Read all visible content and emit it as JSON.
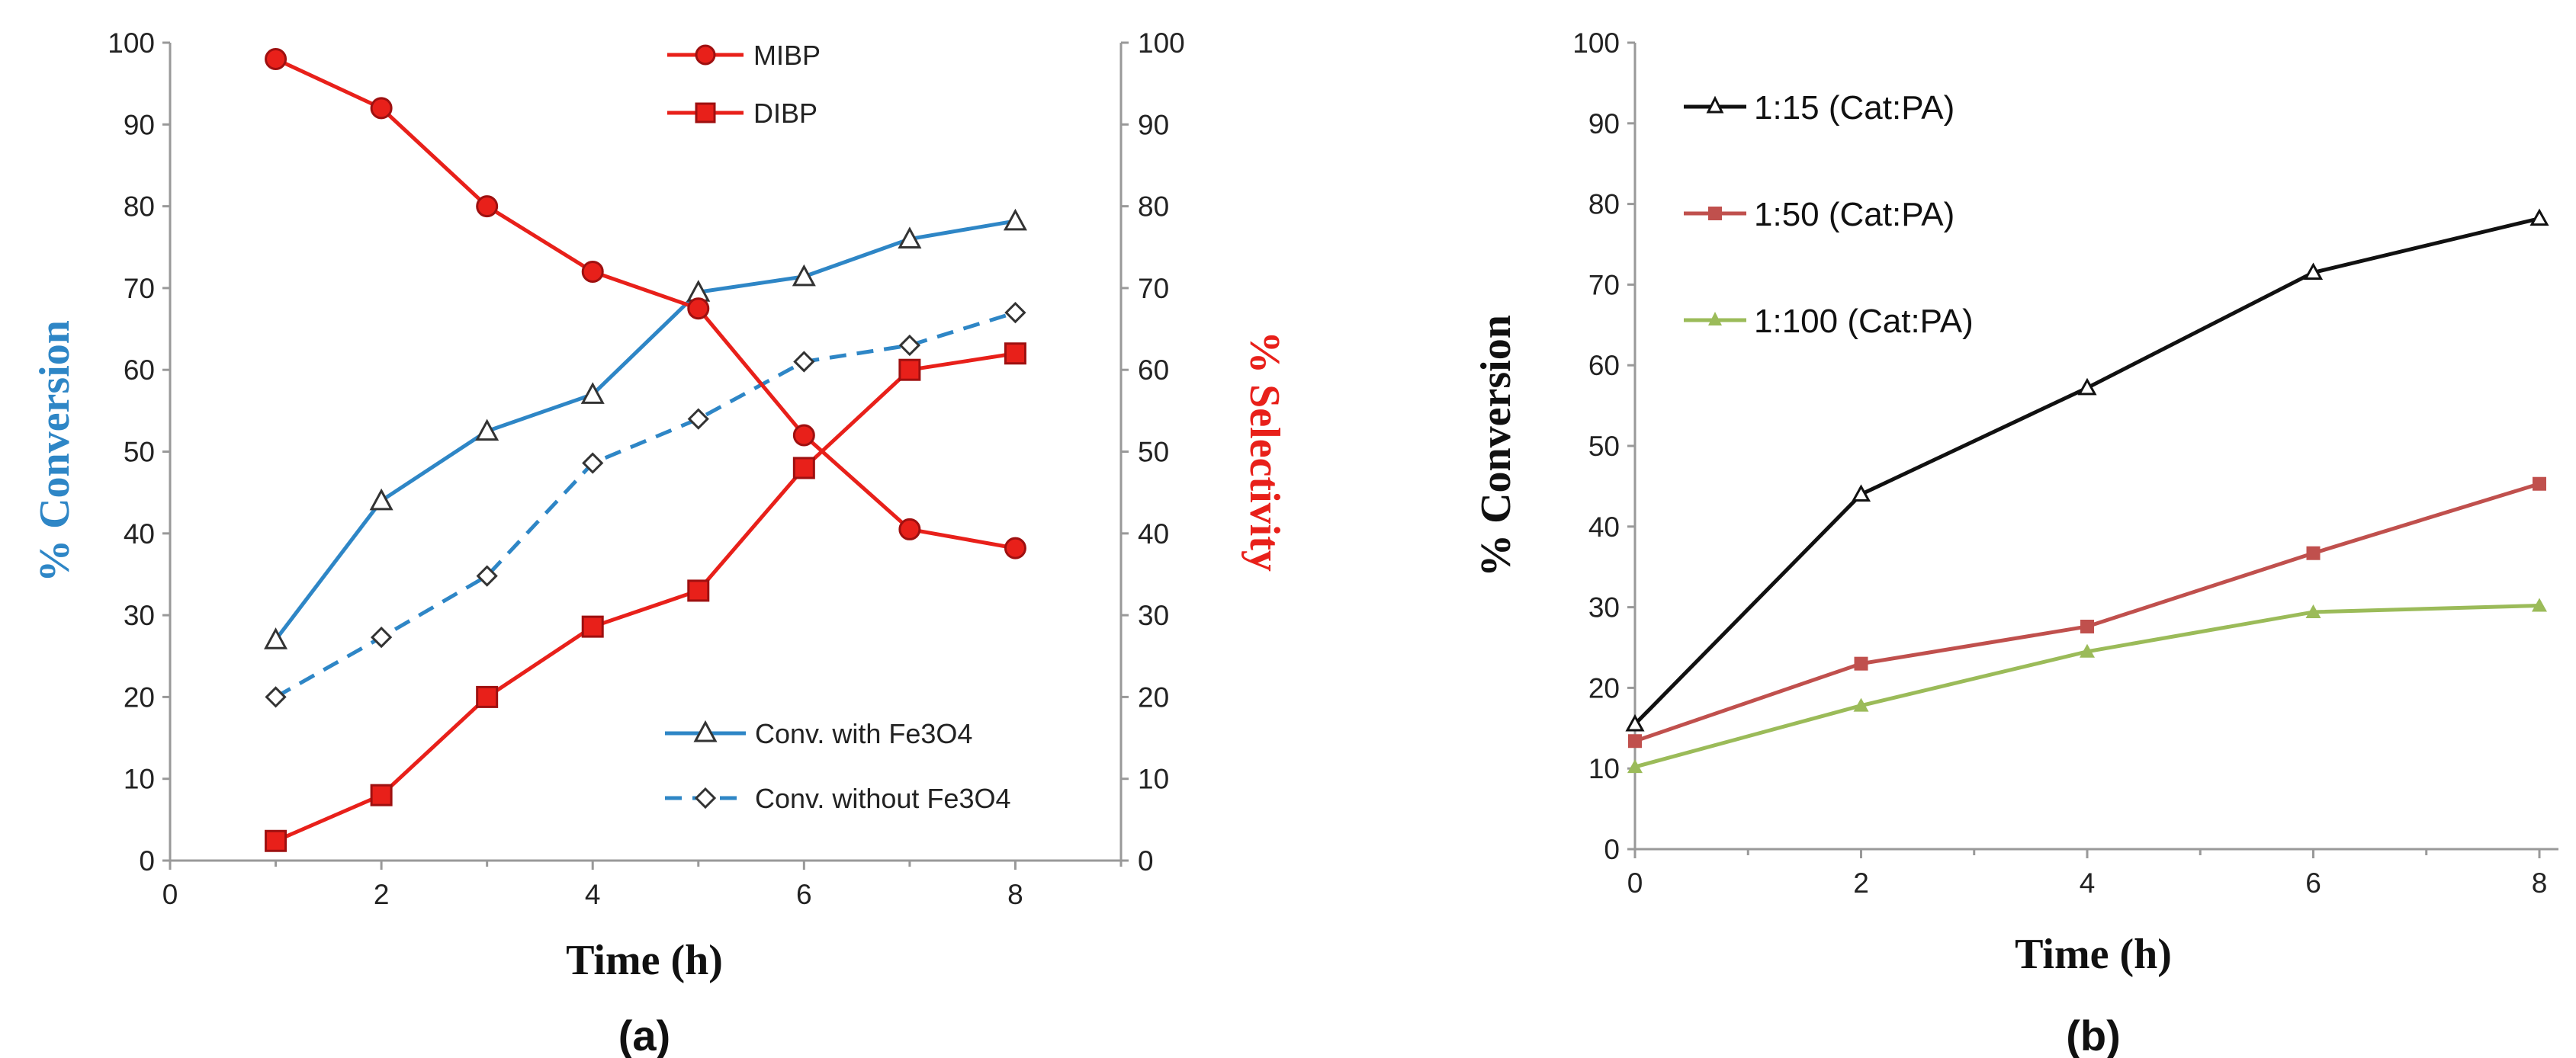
{
  "colors": {
    "blue": "#2e86c6",
    "red": "#e8201a",
    "red_dark": "#9e1010",
    "black": "#111111",
    "brick": "#c0504d",
    "green": "#9bbb59",
    "axis_blue": "#2e86c6",
    "axis_red": "#e8201a"
  },
  "chart_data": [
    {
      "panel_label": "(a)",
      "type": "line",
      "xlabel": "Time (h)",
      "ylabel": "% Conversion",
      "y2label": "% Selectivity",
      "xlim": [
        0,
        9
      ],
      "ylim": [
        0,
        100
      ],
      "y2lim": [
        0,
        100
      ],
      "x_ticks": [
        "0",
        "2",
        "4",
        "6",
        "8"
      ],
      "y_ticks": [
        "0",
        "10",
        "20",
        "30",
        "40",
        "50",
        "60",
        "70",
        "80",
        "90",
        "100"
      ],
      "y2_ticks": [
        "0",
        "10",
        "20",
        "30",
        "40",
        "50",
        "60",
        "70",
        "80",
        "90",
        "100"
      ],
      "series": [
        {
          "name": "MIBP",
          "axis": "right",
          "marker": "circle",
          "style": "solid",
          "color": "#e8201a",
          "x": [
            1,
            2,
            3,
            4,
            5,
            6,
            7,
            8
          ],
          "values": [
            98,
            92,
            80,
            72,
            67.5,
            52,
            40.5,
            38.2
          ]
        },
        {
          "name": "DIBP",
          "axis": "right",
          "marker": "square",
          "style": "solid",
          "color": "#e8201a",
          "x": [
            1,
            2,
            3,
            4,
            5,
            6,
            7,
            8
          ],
          "values": [
            2.4,
            8,
            20,
            28.6,
            33,
            48,
            60,
            62
          ]
        },
        {
          "name": "Conv. with Fe3O4",
          "axis": "left",
          "marker": "triangle-open",
          "style": "solid",
          "color": "#2e86c6",
          "x": [
            1,
            2,
            3,
            4,
            5,
            6,
            7,
            8
          ],
          "values": [
            27,
            44,
            52.5,
            57,
            69.5,
            71.4,
            76,
            78.2
          ]
        },
        {
          "name": "Conv. without Fe3O4",
          "axis": "left",
          "marker": "diamond-open",
          "style": "dashed",
          "color": "#2e86c6",
          "x": [
            1,
            2,
            3,
            4,
            5,
            6,
            7,
            8
          ],
          "values": [
            20,
            27.3,
            34.8,
            48.6,
            54,
            61,
            63,
            67
          ]
        }
      ]
    },
    {
      "panel_label": "(b)",
      "type": "line",
      "xlabel": "Time (h)",
      "ylabel": "% Conversion",
      "xlim": [
        0,
        8
      ],
      "ylim": [
        0,
        100
      ],
      "x_ticks": [
        "0",
        "2",
        "4",
        "6",
        "8"
      ],
      "y_ticks": [
        "0",
        "10",
        "20",
        "30",
        "40",
        "50",
        "60",
        "70",
        "80",
        "90",
        "100"
      ],
      "series": [
        {
          "name": "1:15   (Cat:PA)",
          "marker": "triangle-open",
          "color": "#111111",
          "x": [
            0,
            2,
            4,
            6,
            8
          ],
          "values": [
            15.5,
            44,
            57.2,
            71.5,
            78.2
          ]
        },
        {
          "name": "1:50   (Cat:PA)",
          "marker": "square",
          "color": "#c0504d",
          "x": [
            0,
            2,
            4,
            6,
            8
          ],
          "values": [
            13.4,
            23,
            27.6,
            36.7,
            45.3
          ]
        },
        {
          "name": "1:100 (Cat:PA)",
          "marker": "triangle",
          "color": "#9bbb59",
          "x": [
            0,
            2,
            4,
            6,
            8
          ],
          "values": [
            10.2,
            17.8,
            24.5,
            29.4,
            30.2
          ]
        }
      ]
    }
  ]
}
